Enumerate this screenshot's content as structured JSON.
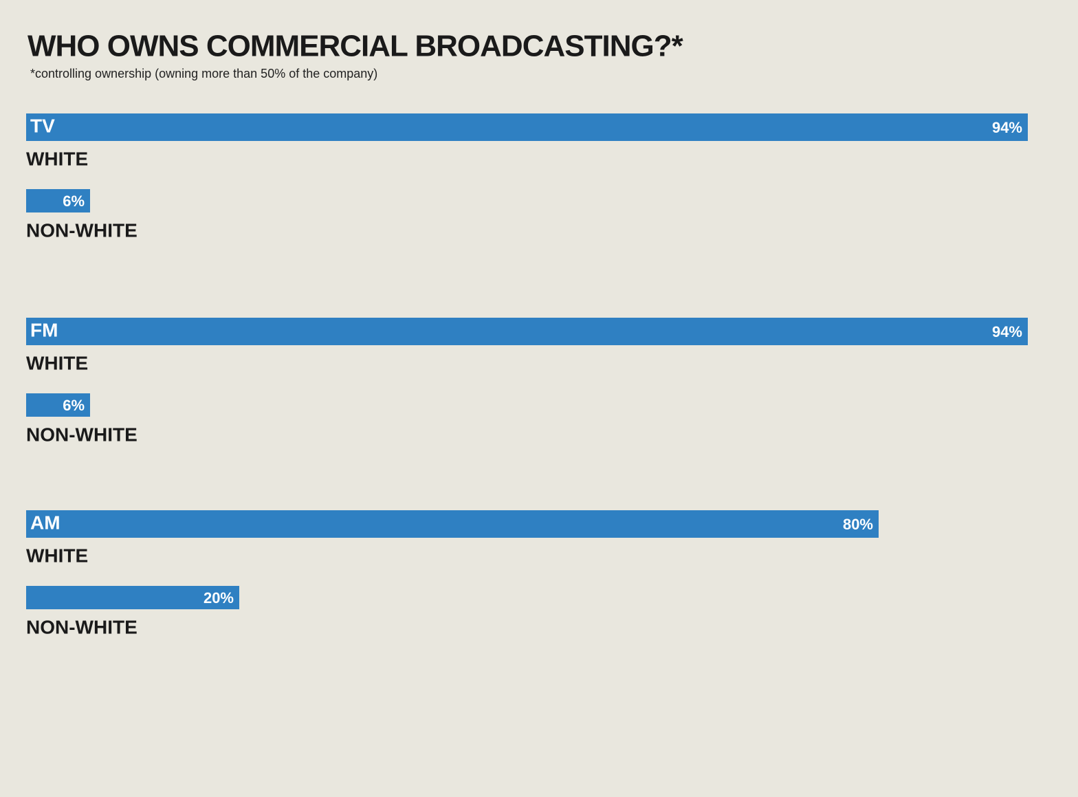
{
  "chart_data": {
    "type": "bar",
    "title": "WHO OWNS COMMERCIAL BROADCASTING?*",
    "subtitle": "*controlling ownership (owning more than 50% of the company)",
    "categories": [
      "TV",
      "FM",
      "AM"
    ],
    "series": [
      {
        "name": "WHITE",
        "color": "#2f80c2",
        "values": [
          94,
          94,
          80
        ],
        "value_labels": [
          "94%",
          "94%",
          "80%"
        ]
      },
      {
        "name": "NON-WHITE",
        "color": "#2f80c2",
        "values": [
          6,
          6,
          20
        ],
        "value_labels": [
          "6%",
          "6%",
          "20%"
        ]
      }
    ]
  }
}
